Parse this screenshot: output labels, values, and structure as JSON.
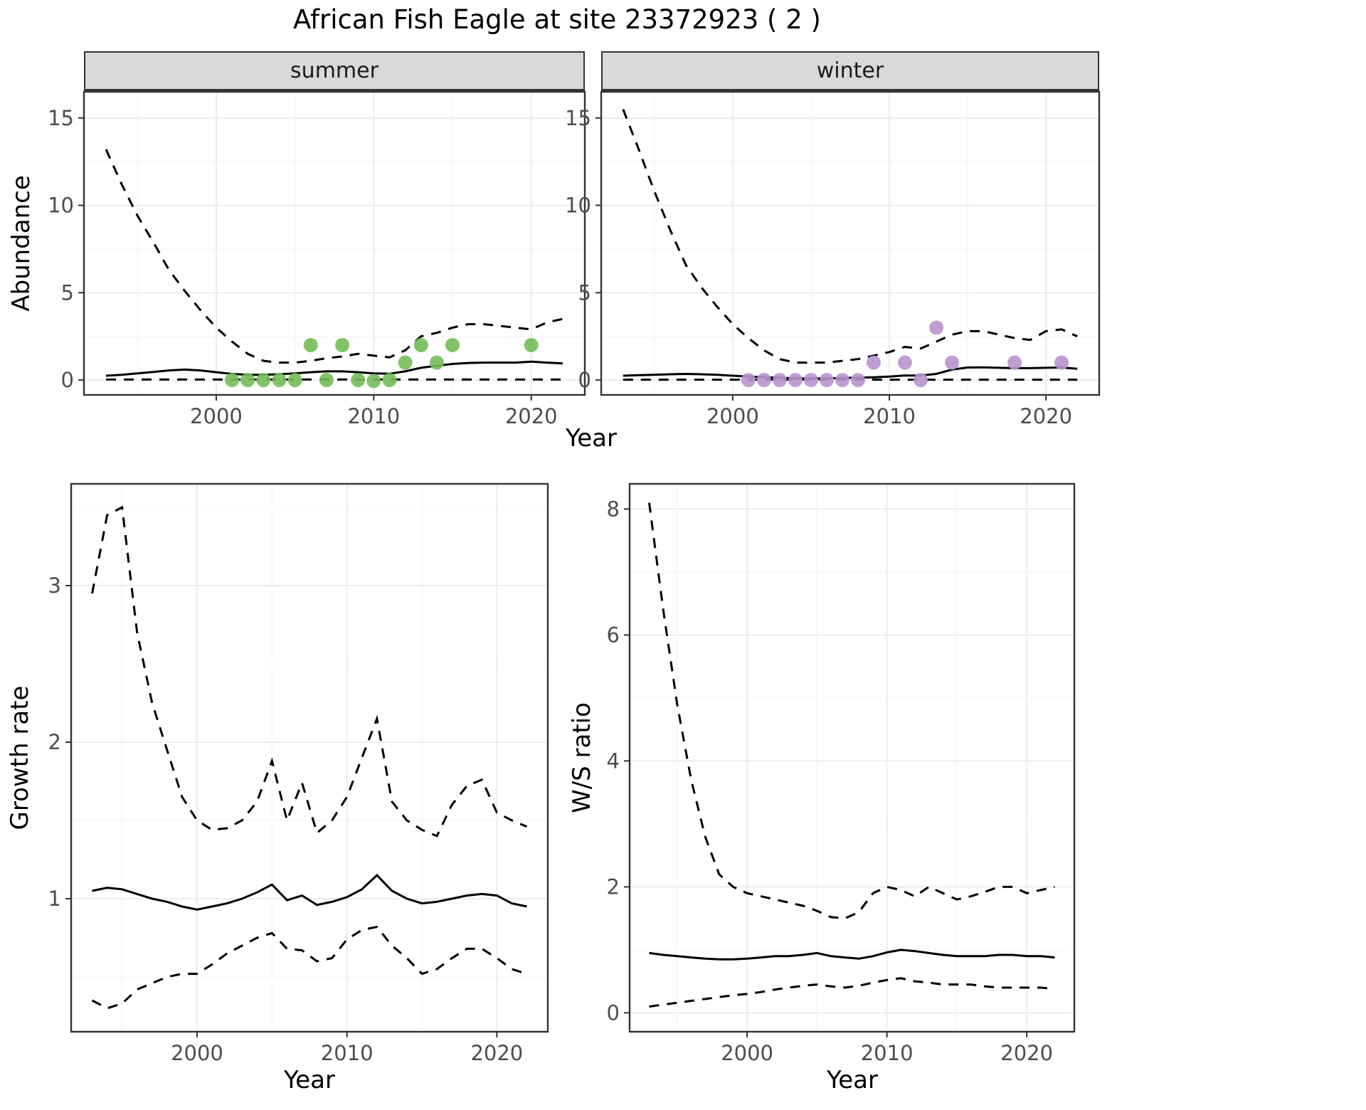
{
  "title": "African Fish Eagle at site 23372923 ( 2 )",
  "facets": {
    "summer": "summer",
    "winter": "winter"
  },
  "axis_labels": {
    "abundance": "Abundance",
    "year_top": "Year",
    "growth": "Growth rate",
    "year_bottom_left": "Year",
    "ws_ratio": "W/S ratio",
    "year_bottom_right": "Year"
  },
  "style": {
    "summer_point": "#74bd5a",
    "winter_point": "#b993cc",
    "line": "#000000",
    "strip_bg": "#d9d9d9",
    "grid_major": "#ebebeb",
    "grid_minor": "#f5f5f5",
    "panel_border": "#333333",
    "tick_label": "#4d4d4d"
  },
  "chart_data": [
    {
      "id": "summer",
      "type": "line",
      "facet": "summer",
      "xlabel": "Year",
      "ylabel": "Abundance",
      "xlim": [
        1991.6,
        2023.4
      ],
      "ylim": [
        -0.85,
        16.5
      ],
      "xticks": [
        2000,
        2010,
        2020
      ],
      "yticks": [
        0,
        5,
        10,
        15
      ],
      "grid": true,
      "legend": "none",
      "x": [
        1993,
        1994,
        1995,
        1996,
        1997,
        1998,
        1999,
        2000,
        2001,
        2002,
        2003,
        2004,
        2005,
        2006,
        2007,
        2008,
        2009,
        2010,
        2011,
        2012,
        2013,
        2014,
        2015,
        2016,
        2017,
        2018,
        2019,
        2020,
        2021,
        2022
      ],
      "series": [
        {
          "name": "upper_95ci",
          "style": "dashed",
          "values": [
            13.2,
            11.2,
            9.4,
            7.9,
            6.3,
            5.1,
            4.0,
            3.0,
            2.2,
            1.5,
            1.1,
            1.0,
            1.0,
            1.1,
            1.25,
            1.35,
            1.5,
            1.4,
            1.3,
            1.7,
            2.5,
            2.7,
            3.0,
            3.2,
            3.2,
            3.1,
            3.0,
            2.9,
            3.3,
            3.5
          ]
        },
        {
          "name": "mean",
          "style": "solid",
          "values": [
            0.25,
            0.3,
            0.38,
            0.46,
            0.55,
            0.6,
            0.55,
            0.45,
            0.35,
            0.3,
            0.3,
            0.33,
            0.38,
            0.45,
            0.5,
            0.5,
            0.45,
            0.38,
            0.36,
            0.5,
            0.7,
            0.82,
            0.92,
            0.98,
            1.0,
            1.0,
            1.0,
            1.05,
            1.0,
            0.95
          ]
        },
        {
          "name": "lower_95ci",
          "style": "dashed",
          "values": [
            0.03,
            0.03,
            0.03,
            0.03,
            0.03,
            0.03,
            0.03,
            0.03,
            0.03,
            0.03,
            0.03,
            0.03,
            0.03,
            0.03,
            0.03,
            0.03,
            0.03,
            0.03,
            0.03,
            0.03,
            0.03,
            0.03,
            0.03,
            0.03,
            0.03,
            0.03,
            0.03,
            0.03,
            0.03,
            0.03
          ]
        }
      ],
      "points": {
        "name": "summer-observations",
        "color_key": "summer_point",
        "xy": [
          [
            2001,
            0
          ],
          [
            2002,
            0
          ],
          [
            2003,
            0
          ],
          [
            2004,
            0
          ],
          [
            2005,
            0
          ],
          [
            2006,
            2
          ],
          [
            2007,
            0
          ],
          [
            2008,
            2
          ],
          [
            2009,
            0
          ],
          [
            2010,
            -0.05
          ],
          [
            2011,
            0
          ],
          [
            2012,
            1
          ],
          [
            2013,
            2
          ],
          [
            2014,
            1
          ],
          [
            2015,
            2
          ],
          [
            2020,
            2
          ]
        ]
      }
    },
    {
      "id": "winter",
      "type": "line",
      "facet": "winter",
      "xlabel": "Year",
      "ylabel": "Abundance",
      "xlim": [
        1991.6,
        2023.4
      ],
      "ylim": [
        -0.85,
        16.5
      ],
      "xticks": [
        2000,
        2010,
        2020
      ],
      "yticks": [
        0,
        5,
        10,
        15
      ],
      "grid": true,
      "legend": "none",
      "x": [
        1993,
        1994,
        1995,
        1996,
        1997,
        1998,
        1999,
        2000,
        2001,
        2002,
        2003,
        2004,
        2005,
        2006,
        2007,
        2008,
        2009,
        2010,
        2011,
        2012,
        2013,
        2014,
        2015,
        2016,
        2017,
        2018,
        2019,
        2020,
        2021,
        2022
      ],
      "series": [
        {
          "name": "upper_95ci",
          "style": "dashed",
          "values": [
            15.5,
            13.2,
            10.8,
            8.6,
            6.6,
            5.3,
            4.2,
            3.2,
            2.4,
            1.7,
            1.2,
            1.0,
            1.0,
            1.0,
            1.1,
            1.2,
            1.4,
            1.6,
            1.9,
            1.8,
            2.2,
            2.6,
            2.8,
            2.8,
            2.6,
            2.4,
            2.3,
            2.8,
            2.9,
            2.5
          ]
        },
        {
          "name": "mean",
          "style": "solid",
          "values": [
            0.25,
            0.28,
            0.3,
            0.33,
            0.35,
            0.33,
            0.3,
            0.25,
            0.2,
            0.16,
            0.13,
            0.1,
            0.1,
            0.1,
            0.12,
            0.14,
            0.16,
            0.2,
            0.26,
            0.26,
            0.35,
            0.6,
            0.72,
            0.73,
            0.7,
            0.68,
            0.68,
            0.7,
            0.72,
            0.65
          ]
        },
        {
          "name": "lower_95ci",
          "style": "dashed",
          "values": [
            0.02,
            0.02,
            0.02,
            0.02,
            0.02,
            0.02,
            0.02,
            0.02,
            0.02,
            0.02,
            0.02,
            0.02,
            0.02,
            0.02,
            0.02,
            0.02,
            0.02,
            0.02,
            0.02,
            0.02,
            0.02,
            0.02,
            0.02,
            0.02,
            0.02,
            0.02,
            0.02,
            0.02,
            0.02,
            0.02
          ]
        }
      ],
      "points": {
        "name": "winter-observations",
        "color_key": "winter_point",
        "xy": [
          [
            2001,
            0
          ],
          [
            2002,
            0
          ],
          [
            2003,
            0
          ],
          [
            2004,
            0
          ],
          [
            2005,
            0
          ],
          [
            2006,
            0
          ],
          [
            2007,
            0
          ],
          [
            2008,
            0
          ],
          [
            2009,
            1
          ],
          [
            2011,
            1
          ],
          [
            2012,
            0
          ],
          [
            2013,
            3
          ],
          [
            2014,
            1
          ],
          [
            2018,
            1
          ],
          [
            2021,
            1
          ]
        ]
      }
    },
    {
      "id": "growth",
      "type": "line",
      "xlabel": "Year",
      "ylabel": "Growth rate",
      "xlim": [
        1991.6,
        2023.4
      ],
      "ylim": [
        0.15,
        3.65
      ],
      "xticks": [
        2000,
        2010,
        2020
      ],
      "yticks": [
        1,
        2,
        3
      ],
      "grid": true,
      "legend": "none",
      "x": [
        1993,
        1994,
        1995,
        1996,
        1997,
        1998,
        1999,
        2000,
        2001,
        2002,
        2003,
        2004,
        2005,
        2006,
        2007,
        2008,
        2009,
        2010,
        2011,
        2012,
        2013,
        2014,
        2015,
        2016,
        2017,
        2018,
        2019,
        2020,
        2021,
        2022
      ],
      "series": [
        {
          "name": "upper_95ci",
          "style": "dashed",
          "values": [
            2.95,
            3.45,
            3.5,
            2.7,
            2.25,
            1.95,
            1.65,
            1.5,
            1.44,
            1.45,
            1.5,
            1.62,
            1.88,
            1.5,
            1.74,
            1.42,
            1.5,
            1.65,
            1.9,
            2.15,
            1.62,
            1.5,
            1.44,
            1.4,
            1.6,
            1.72,
            1.76,
            1.55,
            1.5,
            1.46
          ]
        },
        {
          "name": "mean",
          "style": "solid",
          "values": [
            1.05,
            1.07,
            1.06,
            1.03,
            1.0,
            0.98,
            0.95,
            0.93,
            0.95,
            0.97,
            1.0,
            1.04,
            1.09,
            0.99,
            1.02,
            0.96,
            0.98,
            1.01,
            1.06,
            1.15,
            1.05,
            1.0,
            0.97,
            0.98,
            1.0,
            1.02,
            1.03,
            1.02,
            0.97,
            0.95
          ]
        },
        {
          "name": "lower_95ci",
          "style": "dashed",
          "values": [
            0.35,
            0.3,
            0.33,
            0.42,
            0.46,
            0.5,
            0.52,
            0.52,
            0.58,
            0.65,
            0.7,
            0.75,
            0.78,
            0.68,
            0.67,
            0.6,
            0.62,
            0.74,
            0.8,
            0.82,
            0.7,
            0.62,
            0.52,
            0.55,
            0.62,
            0.68,
            0.68,
            0.62,
            0.55,
            0.52
          ]
        }
      ]
    },
    {
      "id": "wsratio",
      "type": "line",
      "xlabel": "Year",
      "ylabel": "W/S ratio",
      "xlim": [
        1991.6,
        2023.4
      ],
      "ylim": [
        -0.3,
        8.4
      ],
      "xticks": [
        2000,
        2010,
        2020
      ],
      "yticks": [
        0,
        2,
        4,
        6,
        8
      ],
      "grid": true,
      "legend": "none",
      "x": [
        1993,
        1994,
        1995,
        1996,
        1997,
        1998,
        1999,
        2000,
        2001,
        2002,
        2003,
        2004,
        2005,
        2006,
        2007,
        2008,
        2009,
        2010,
        2011,
        2012,
        2013,
        2014,
        2015,
        2016,
        2017,
        2018,
        2019,
        2020,
        2021,
        2022
      ],
      "series": [
        {
          "name": "upper_95ci",
          "style": "dashed",
          "values": [
            8.1,
            6.4,
            4.9,
            3.7,
            2.8,
            2.2,
            2.0,
            1.9,
            1.85,
            1.8,
            1.75,
            1.7,
            1.62,
            1.52,
            1.5,
            1.6,
            1.9,
            2.0,
            1.95,
            1.85,
            2.0,
            1.9,
            1.8,
            1.85,
            1.92,
            2.0,
            2.0,
            1.9,
            1.95,
            2.0
          ]
        },
        {
          "name": "mean",
          "style": "solid",
          "values": [
            0.95,
            0.92,
            0.9,
            0.88,
            0.86,
            0.85,
            0.85,
            0.86,
            0.88,
            0.9,
            0.9,
            0.92,
            0.95,
            0.9,
            0.88,
            0.86,
            0.9,
            0.96,
            1.0,
            0.98,
            0.95,
            0.92,
            0.9,
            0.9,
            0.9,
            0.92,
            0.92,
            0.9,
            0.9,
            0.88
          ]
        },
        {
          "name": "lower_95ci",
          "style": "dashed",
          "values": [
            0.1,
            0.13,
            0.16,
            0.19,
            0.22,
            0.25,
            0.28,
            0.3,
            0.33,
            0.37,
            0.4,
            0.43,
            0.45,
            0.42,
            0.4,
            0.43,
            0.48,
            0.52,
            0.55,
            0.5,
            0.48,
            0.45,
            0.45,
            0.45,
            0.42,
            0.4,
            0.4,
            0.4,
            0.4,
            0.38
          ]
        }
      ]
    }
  ]
}
